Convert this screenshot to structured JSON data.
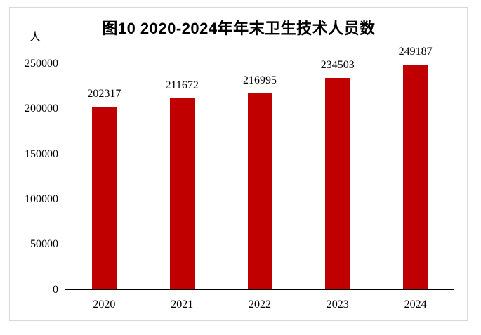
{
  "chart_data": {
    "type": "bar",
    "title": "图10 2020-2024年年末卫生技术人员数",
    "unit_label": "人",
    "categories": [
      "2020",
      "2021",
      "2022",
      "2023",
      "2024"
    ],
    "values": [
      202317,
      211672,
      216995,
      234503,
      249187
    ],
    "data_labels": [
      "202317",
      "211672",
      "216995",
      "234503",
      "249187"
    ],
    "xlabel": "",
    "ylabel": "人",
    "ylim": [
      0,
      250000
    ],
    "yticks": [
      0,
      50000,
      100000,
      150000,
      200000,
      250000
    ],
    "ytick_labels": [
      "0",
      "50000",
      "100000",
      "150000",
      "200000",
      "250000"
    ],
    "bar_color": "#c00000",
    "axis_color": "#000000",
    "frame_border_color": "#d9d9d9",
    "grid": "off",
    "legend": "none"
  }
}
